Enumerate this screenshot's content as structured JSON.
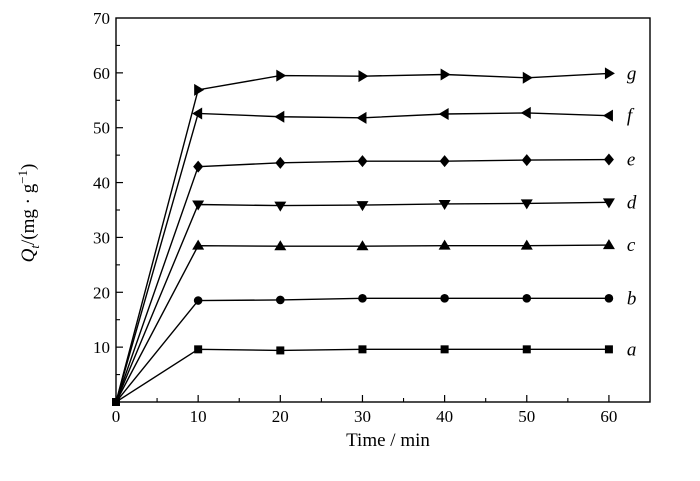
{
  "chart_data": {
    "type": "line",
    "xlabel": "Time / min",
    "ylabel_main": "Q",
    "ylabel_sub": "t",
    "ylabel_unit": "/(mg · g",
    "ylabel_exp": "−1",
    "ylabel_close": ")",
    "xlim": [
      0,
      65
    ],
    "ylim": [
      0,
      70
    ],
    "xticks": [
      0,
      10,
      20,
      30,
      40,
      50,
      60
    ],
    "yticks": [
      10,
      20,
      30,
      40,
      50,
      60,
      70
    ],
    "grid": false,
    "legend": "none",
    "x": [
      0,
      10,
      20,
      30,
      40,
      50,
      60
    ],
    "series": [
      {
        "name": "a",
        "marker": "square",
        "values": [
          0,
          9.6,
          9.4,
          9.6,
          9.6,
          9.6,
          9.6
        ]
      },
      {
        "name": "b",
        "marker": "circle",
        "values": [
          0,
          18.5,
          18.6,
          18.9,
          18.9,
          18.9,
          18.9
        ]
      },
      {
        "name": "c",
        "marker": "triangle-up",
        "values": [
          0,
          28.5,
          28.4,
          28.4,
          28.5,
          28.5,
          28.6
        ]
      },
      {
        "name": "d",
        "marker": "triangle-down",
        "values": [
          0,
          36.0,
          35.8,
          35.9,
          36.1,
          36.2,
          36.4
        ]
      },
      {
        "name": "e",
        "marker": "diamond",
        "values": [
          0,
          42.9,
          43.6,
          43.9,
          43.9,
          44.1,
          44.2
        ]
      },
      {
        "name": "f",
        "marker": "triangle-left",
        "values": [
          0,
          52.6,
          52.0,
          51.8,
          52.5,
          52.7,
          52.2
        ]
      },
      {
        "name": "g",
        "marker": "triangle-right",
        "values": [
          0,
          56.9,
          59.5,
          59.4,
          59.7,
          59.1,
          59.9
        ]
      }
    ]
  }
}
